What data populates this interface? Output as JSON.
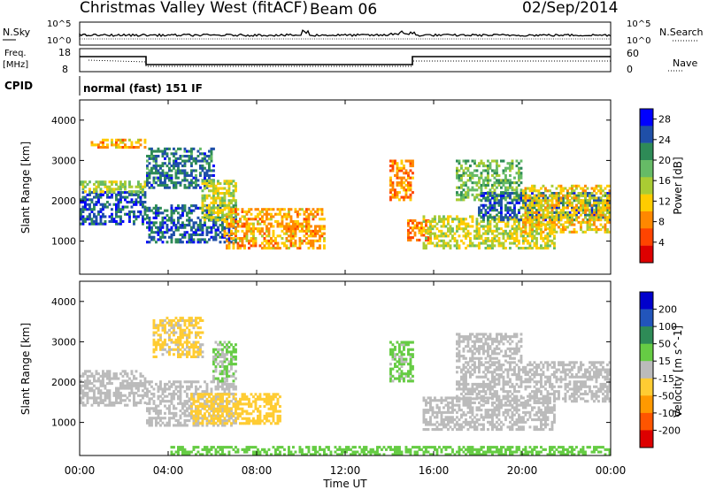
{
  "header": {
    "title": "Christmas Valley West (fitACF)",
    "beam": "Beam 06",
    "date": "02/Sep/2014"
  },
  "strip": {
    "nsky_label": "N.Sky",
    "nsearch_label": "N.Search",
    "freq_label_1": "Freq.",
    "freq_label_2": "[MHz]",
    "nave_label": "Nave",
    "cpid_label": "CPID",
    "cpid_value": "normal (fast) 151 IF",
    "nsky_ticks": [
      "10^5",
      "10^0"
    ],
    "freq_ticks": [
      "18",
      "8"
    ],
    "nave_ticks": [
      "60",
      "0"
    ],
    "nsearch_ticks": [
      "10^5",
      "10^0"
    ]
  },
  "colors": {
    "power_scale": [
      "#0000ff",
      "#1f4fa8",
      "#2e8b57",
      "#66bb66",
      "#aacc33",
      "#ffcc00",
      "#ff8800",
      "#ff4400",
      "#dd0000"
    ],
    "velocity_scale": [
      "#0000cc",
      "#2255bb",
      "#2e8b57",
      "#66cc44",
      "#bbbbbb",
      "#ffcc33",
      "#ff9900",
      "#ff5500",
      "#dd0000"
    ]
  },
  "chart_data": [
    {
      "type": "heatmap",
      "panel": "power",
      "xlabel": "Time UT",
      "ylabel": "Slant Range [km]",
      "x_ticks": [
        "00:00",
        "04:00",
        "08:00",
        "12:00",
        "16:00",
        "20:00",
        "00:00"
      ],
      "xlim_hours": [
        0,
        24
      ],
      "ylim_km": [
        180,
        4500
      ],
      "y_ticks": [
        1000,
        2000,
        3000,
        4000
      ],
      "colorbar": {
        "label": "Power [dB]",
        "ticks": [
          4,
          8,
          12,
          16,
          20,
          24,
          28
        ],
        "range": [
          0,
          30
        ]
      },
      "echo_regions": [
        {
          "t0": 0.0,
          "t1": 3.0,
          "r0": 1400,
          "r1": 2200,
          "level": 25
        },
        {
          "t0": 0.0,
          "t1": 3.0,
          "r0": 2200,
          "r1": 2500,
          "level": 16
        },
        {
          "t0": 0.5,
          "t1": 3.0,
          "r0": 3300,
          "r1": 3500,
          "level": 10
        },
        {
          "t0": 3.0,
          "t1": 6.0,
          "r0": 2300,
          "r1": 3300,
          "level": 23
        },
        {
          "t0": 3.0,
          "t1": 7.0,
          "r0": 950,
          "r1": 1900,
          "level": 24
        },
        {
          "t0": 5.5,
          "t1": 7.0,
          "r0": 1500,
          "r1": 2500,
          "level": 14
        },
        {
          "t0": 6.5,
          "t1": 11.0,
          "r0": 800,
          "r1": 1800,
          "level": 10
        },
        {
          "t0": 14.8,
          "t1": 15.8,
          "r0": 1000,
          "r1": 1500,
          "level": 8
        },
        {
          "t0": 14.0,
          "t1": 15.0,
          "r0": 2000,
          "r1": 3000,
          "level": 8
        },
        {
          "t0": 15.5,
          "t1": 21.5,
          "r0": 800,
          "r1": 1600,
          "level": 14
        },
        {
          "t0": 17.0,
          "t1": 20.0,
          "r0": 2000,
          "r1": 3000,
          "level": 18
        },
        {
          "t0": 18.0,
          "t1": 24.0,
          "r0": 1500,
          "r1": 2200,
          "level": 24
        },
        {
          "t0": 20.0,
          "t1": 24.0,
          "r0": 1200,
          "r1": 2400,
          "level": 12
        }
      ]
    },
    {
      "type": "heatmap",
      "panel": "velocity",
      "xlabel": "Time UT",
      "ylabel": "Slant Range [km]",
      "x_ticks": [
        "00:00",
        "04:00",
        "08:00",
        "12:00",
        "16:00",
        "20:00",
        "00:00"
      ],
      "xlim_hours": [
        0,
        24
      ],
      "ylim_km": [
        180,
        4500
      ],
      "y_ticks": [
        1000,
        2000,
        3000,
        4000
      ],
      "colorbar": {
        "label": "Velocity [m s^-1]",
        "ticks": [
          200,
          100,
          50,
          15,
          -15,
          -50,
          -100,
          -200
        ],
        "range": [
          -250,
          250
        ]
      },
      "echo_regions": [
        {
          "t0": 0.0,
          "t1": 3.0,
          "r0": 1400,
          "r1": 2300,
          "level": 0
        },
        {
          "t0": 3.0,
          "t1": 7.0,
          "r0": 900,
          "r1": 2000,
          "level": 0
        },
        {
          "t0": 3.3,
          "t1": 5.5,
          "r0": 2600,
          "r1": 3600,
          "level": -40
        },
        {
          "t0": 5.0,
          "t1": 9.0,
          "r0": 950,
          "r1": 1700,
          "level": -60
        },
        {
          "t0": 6.0,
          "t1": 7.0,
          "r0": 2000,
          "r1": 3000,
          "level": 30
        },
        {
          "t0": 14.0,
          "t1": 15.0,
          "r0": 2000,
          "r1": 3000,
          "level": 40
        },
        {
          "t0": 15.5,
          "t1": 21.5,
          "r0": 800,
          "r1": 1600,
          "level": 0
        },
        {
          "t0": 17.0,
          "t1": 24.0,
          "r0": 1500,
          "r1": 2500,
          "level": 0
        },
        {
          "t0": 17.0,
          "t1": 20.0,
          "r0": 2500,
          "r1": 3200,
          "level": 0
        },
        {
          "t0": 4.0,
          "t1": 24.0,
          "r0": 180,
          "r1": 400,
          "level": 60
        }
      ]
    }
  ]
}
